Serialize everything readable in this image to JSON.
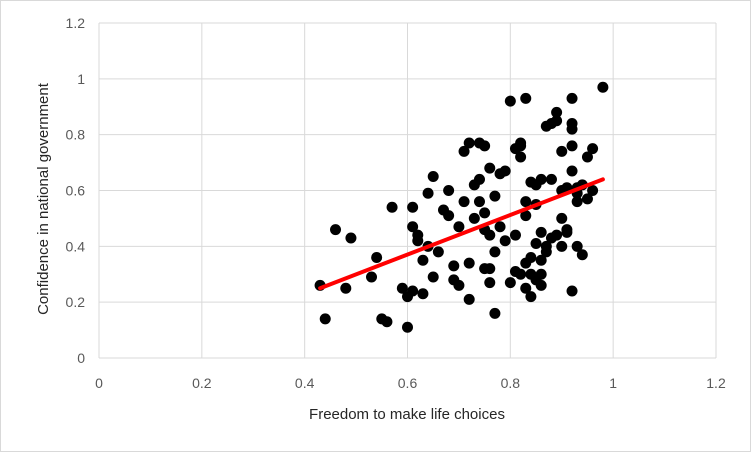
{
  "chart_data": {
    "type": "scatter",
    "xlabel": "Freedom to make life choices",
    "ylabel": "Confidence in national government",
    "xlim": [
      0,
      1.2
    ],
    "ylim": [
      0,
      1.2
    ],
    "x_ticks": [
      "0",
      "0.2",
      "0.4",
      "0.6",
      "0.8",
      "1",
      "1.2"
    ],
    "y_ticks": [
      "0",
      "0.2",
      "0.4",
      "0.6",
      "0.8",
      "1",
      "1.2"
    ],
    "grid": true,
    "legend": "none",
    "colors": {
      "points": "#000000",
      "trendline": "#ff0000",
      "grid": "#d9d9d9"
    },
    "trendline": {
      "x": [
        0.43,
        0.98
      ],
      "y": [
        0.25,
        0.64
      ]
    },
    "points": [
      {
        "x": 0.43,
        "y": 0.26
      },
      {
        "x": 0.44,
        "y": 0.14
      },
      {
        "x": 0.46,
        "y": 0.46
      },
      {
        "x": 0.48,
        "y": 0.25
      },
      {
        "x": 0.49,
        "y": 0.43
      },
      {
        "x": 0.53,
        "y": 0.29
      },
      {
        "x": 0.54,
        "y": 0.36
      },
      {
        "x": 0.55,
        "y": 0.14
      },
      {
        "x": 0.56,
        "y": 0.13
      },
      {
        "x": 0.57,
        "y": 0.54
      },
      {
        "x": 0.59,
        "y": 0.25
      },
      {
        "x": 0.6,
        "y": 0.11
      },
      {
        "x": 0.6,
        "y": 0.22
      },
      {
        "x": 0.61,
        "y": 0.24
      },
      {
        "x": 0.61,
        "y": 0.47
      },
      {
        "x": 0.61,
        "y": 0.54
      },
      {
        "x": 0.62,
        "y": 0.44
      },
      {
        "x": 0.62,
        "y": 0.42
      },
      {
        "x": 0.63,
        "y": 0.35
      },
      {
        "x": 0.63,
        "y": 0.23
      },
      {
        "x": 0.64,
        "y": 0.4
      },
      {
        "x": 0.64,
        "y": 0.59
      },
      {
        "x": 0.65,
        "y": 0.65
      },
      {
        "x": 0.65,
        "y": 0.29
      },
      {
        "x": 0.66,
        "y": 0.38
      },
      {
        "x": 0.67,
        "y": 0.53
      },
      {
        "x": 0.68,
        "y": 0.6
      },
      {
        "x": 0.68,
        "y": 0.51
      },
      {
        "x": 0.69,
        "y": 0.28
      },
      {
        "x": 0.69,
        "y": 0.33
      },
      {
        "x": 0.7,
        "y": 0.26
      },
      {
        "x": 0.7,
        "y": 0.47
      },
      {
        "x": 0.71,
        "y": 0.74
      },
      {
        "x": 0.71,
        "y": 0.56
      },
      {
        "x": 0.72,
        "y": 0.34
      },
      {
        "x": 0.72,
        "y": 0.21
      },
      {
        "x": 0.72,
        "y": 0.77
      },
      {
        "x": 0.73,
        "y": 0.62
      },
      {
        "x": 0.73,
        "y": 0.5
      },
      {
        "x": 0.74,
        "y": 0.77
      },
      {
        "x": 0.74,
        "y": 0.56
      },
      {
        "x": 0.74,
        "y": 0.64
      },
      {
        "x": 0.75,
        "y": 0.76
      },
      {
        "x": 0.75,
        "y": 0.52
      },
      {
        "x": 0.75,
        "y": 0.46
      },
      {
        "x": 0.75,
        "y": 0.32
      },
      {
        "x": 0.76,
        "y": 0.68
      },
      {
        "x": 0.76,
        "y": 0.44
      },
      {
        "x": 0.76,
        "y": 0.27
      },
      {
        "x": 0.76,
        "y": 0.32
      },
      {
        "x": 0.77,
        "y": 0.16
      },
      {
        "x": 0.77,
        "y": 0.38
      },
      {
        "x": 0.77,
        "y": 0.58
      },
      {
        "x": 0.78,
        "y": 0.66
      },
      {
        "x": 0.78,
        "y": 0.47
      },
      {
        "x": 0.79,
        "y": 0.67
      },
      {
        "x": 0.79,
        "y": 0.42
      },
      {
        "x": 0.8,
        "y": 0.27
      },
      {
        "x": 0.8,
        "y": 0.92
      },
      {
        "x": 0.81,
        "y": 0.31
      },
      {
        "x": 0.81,
        "y": 0.75
      },
      {
        "x": 0.81,
        "y": 0.44
      },
      {
        "x": 0.82,
        "y": 0.77
      },
      {
        "x": 0.82,
        "y": 0.72
      },
      {
        "x": 0.82,
        "y": 0.76
      },
      {
        "x": 0.82,
        "y": 0.3
      },
      {
        "x": 0.83,
        "y": 0.25
      },
      {
        "x": 0.83,
        "y": 0.51
      },
      {
        "x": 0.83,
        "y": 0.56
      },
      {
        "x": 0.83,
        "y": 0.93
      },
      {
        "x": 0.83,
        "y": 0.34
      },
      {
        "x": 0.84,
        "y": 0.22
      },
      {
        "x": 0.84,
        "y": 0.3
      },
      {
        "x": 0.84,
        "y": 0.36
      },
      {
        "x": 0.84,
        "y": 0.63
      },
      {
        "x": 0.85,
        "y": 0.55
      },
      {
        "x": 0.85,
        "y": 0.62
      },
      {
        "x": 0.85,
        "y": 0.41
      },
      {
        "x": 0.85,
        "y": 0.28
      },
      {
        "x": 0.86,
        "y": 0.45
      },
      {
        "x": 0.86,
        "y": 0.35
      },
      {
        "x": 0.86,
        "y": 0.64
      },
      {
        "x": 0.86,
        "y": 0.26
      },
      {
        "x": 0.86,
        "y": 0.3
      },
      {
        "x": 0.87,
        "y": 0.4
      },
      {
        "x": 0.87,
        "y": 0.83
      },
      {
        "x": 0.87,
        "y": 0.38
      },
      {
        "x": 0.88,
        "y": 0.64
      },
      {
        "x": 0.88,
        "y": 0.84
      },
      {
        "x": 0.88,
        "y": 0.43
      },
      {
        "x": 0.89,
        "y": 0.85
      },
      {
        "x": 0.89,
        "y": 0.44
      },
      {
        "x": 0.89,
        "y": 0.88
      },
      {
        "x": 0.9,
        "y": 0.4
      },
      {
        "x": 0.9,
        "y": 0.5
      },
      {
        "x": 0.9,
        "y": 0.74
      },
      {
        "x": 0.9,
        "y": 0.6
      },
      {
        "x": 0.91,
        "y": 0.61
      },
      {
        "x": 0.91,
        "y": 0.46
      },
      {
        "x": 0.91,
        "y": 0.45
      },
      {
        "x": 0.92,
        "y": 0.24
      },
      {
        "x": 0.92,
        "y": 0.67
      },
      {
        "x": 0.92,
        "y": 0.76
      },
      {
        "x": 0.92,
        "y": 0.82
      },
      {
        "x": 0.92,
        "y": 0.84
      },
      {
        "x": 0.92,
        "y": 0.93
      },
      {
        "x": 0.93,
        "y": 0.59
      },
      {
        "x": 0.93,
        "y": 0.61
      },
      {
        "x": 0.93,
        "y": 0.56
      },
      {
        "x": 0.93,
        "y": 0.4
      },
      {
        "x": 0.94,
        "y": 0.37
      },
      {
        "x": 0.94,
        "y": 0.62
      },
      {
        "x": 0.95,
        "y": 0.72
      },
      {
        "x": 0.95,
        "y": 0.57
      },
      {
        "x": 0.96,
        "y": 0.75
      },
      {
        "x": 0.96,
        "y": 0.6
      },
      {
        "x": 0.98,
        "y": 0.97
      }
    ]
  }
}
